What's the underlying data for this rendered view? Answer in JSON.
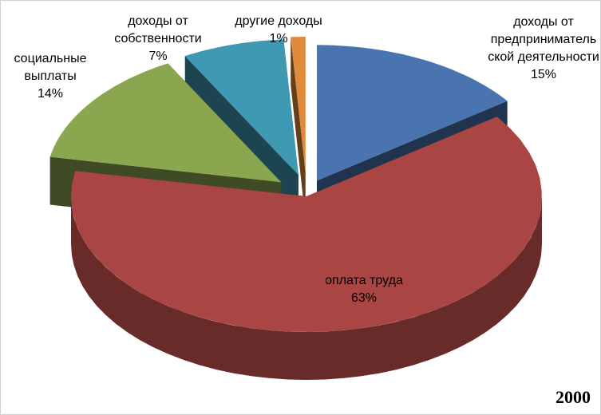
{
  "chart_data": {
    "type": "pie3d",
    "categories": [
      "доходы от предпринимательской деятельности",
      "оплата труда",
      "социальные выплаты",
      "доходы от собственности",
      "другие доходы"
    ],
    "values": [
      15,
      63,
      14,
      7,
      1
    ],
    "value_labels": [
      "15%",
      "63%",
      "14%",
      "7%",
      "1%"
    ],
    "colors": [
      "#4a74b0",
      "#a94543",
      "#8aa64f",
      "#3f99b3",
      "#e08a3a"
    ],
    "annotation": "2000"
  }
}
